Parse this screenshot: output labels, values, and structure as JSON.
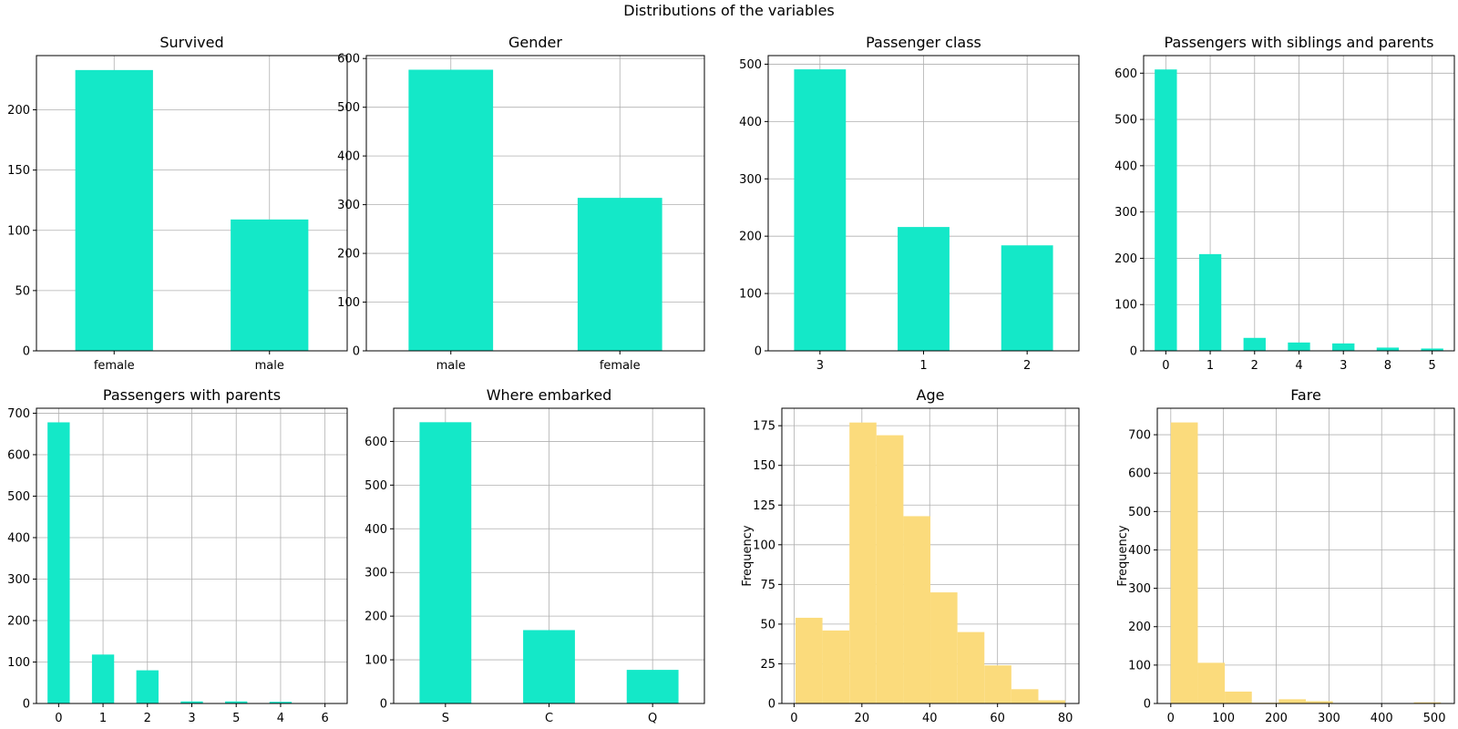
{
  "suptitle": "Distributions of the variables",
  "colors": {
    "bar": "#14e8c8",
    "hist": "#fbdb7c",
    "grid": "#b0b0b0"
  },
  "chart_data": [
    {
      "type": "bar",
      "title": "Survived",
      "categories": [
        "female",
        "male"
      ],
      "values": [
        233,
        109
      ],
      "ylim": [
        0,
        245
      ],
      "yticks": [
        0,
        50,
        100,
        150,
        200
      ],
      "ylabel": "",
      "grid": true,
      "color": "#14e8c8"
    },
    {
      "type": "bar",
      "title": "Gender",
      "categories": [
        "male",
        "female"
      ],
      "values": [
        577,
        314
      ],
      "ylim": [
        0,
        606
      ],
      "yticks": [
        0,
        100,
        200,
        300,
        400,
        500,
        600
      ],
      "ylabel": "",
      "grid": true,
      "color": "#14e8c8"
    },
    {
      "type": "bar",
      "title": "Passenger class",
      "categories": [
        "3",
        "1",
        "2"
      ],
      "values": [
        491,
        216,
        184
      ],
      "ylim": [
        0,
        515
      ],
      "yticks": [
        0,
        100,
        200,
        300,
        400,
        500
      ],
      "ylabel": "",
      "grid": true,
      "color": "#14e8c8"
    },
    {
      "type": "bar",
      "title": "Passengers with siblings and parents",
      "categories": [
        "0",
        "1",
        "2",
        "4",
        "3",
        "8",
        "5"
      ],
      "values": [
        608,
        209,
        28,
        18,
        16,
        7,
        5
      ],
      "ylim": [
        0,
        638
      ],
      "yticks": [
        0,
        100,
        200,
        300,
        400,
        500,
        600
      ],
      "ylabel": "",
      "grid": true,
      "color": "#14e8c8"
    },
    {
      "type": "bar",
      "title": "Passengers with parents",
      "categories": [
        "0",
        "1",
        "2",
        "3",
        "5",
        "4",
        "6"
      ],
      "values": [
        678,
        118,
        80,
        5,
        5,
        4,
        1
      ],
      "ylim": [
        0,
        712
      ],
      "yticks": [
        0,
        100,
        200,
        300,
        400,
        500,
        600,
        700
      ],
      "ylabel": "",
      "grid": true,
      "color": "#14e8c8"
    },
    {
      "type": "bar",
      "title": "Where embarked",
      "categories": [
        "S",
        "C",
        "Q"
      ],
      "values": [
        644,
        168,
        77
      ],
      "ylim": [
        0,
        676
      ],
      "yticks": [
        0,
        100,
        200,
        300,
        400,
        500,
        600
      ],
      "ylabel": "",
      "grid": true,
      "color": "#14e8c8"
    },
    {
      "type": "histogram",
      "title": "Age",
      "bins": [
        0.42,
        8.38,
        16.34,
        24.29,
        32.25,
        40.21,
        48.17,
        56.13,
        64.08,
        72.04,
        80.0
      ],
      "values": [
        54,
        46,
        177,
        169,
        118,
        70,
        45,
        24,
        9,
        2
      ],
      "xlim": [
        -3.6,
        84.0
      ],
      "ylim": [
        0,
        186
      ],
      "xticks": [
        0,
        20,
        40,
        60,
        80
      ],
      "yticks": [
        0,
        25,
        50,
        75,
        100,
        125,
        150,
        175
      ],
      "ylabel": "Frequency",
      "grid": true,
      "color": "#fbdb7c"
    },
    {
      "type": "histogram",
      "title": "Fare",
      "bins": [
        0,
        51.23,
        102.47,
        153.7,
        204.93,
        256.16,
        307.4,
        358.63,
        409.86,
        461.1,
        512.33
      ],
      "values": [
        732,
        106,
        31,
        2,
        11,
        6,
        0,
        0,
        0,
        3
      ],
      "xlim": [
        -25.6,
        537.9
      ],
      "ylim": [
        0,
        769
      ],
      "xticks": [
        0,
        100,
        200,
        300,
        400,
        500
      ],
      "yticks": [
        0,
        100,
        200,
        300,
        400,
        500,
        600,
        700
      ],
      "ylabel": "Frequency",
      "grid": true,
      "color": "#fbdb7c"
    }
  ]
}
